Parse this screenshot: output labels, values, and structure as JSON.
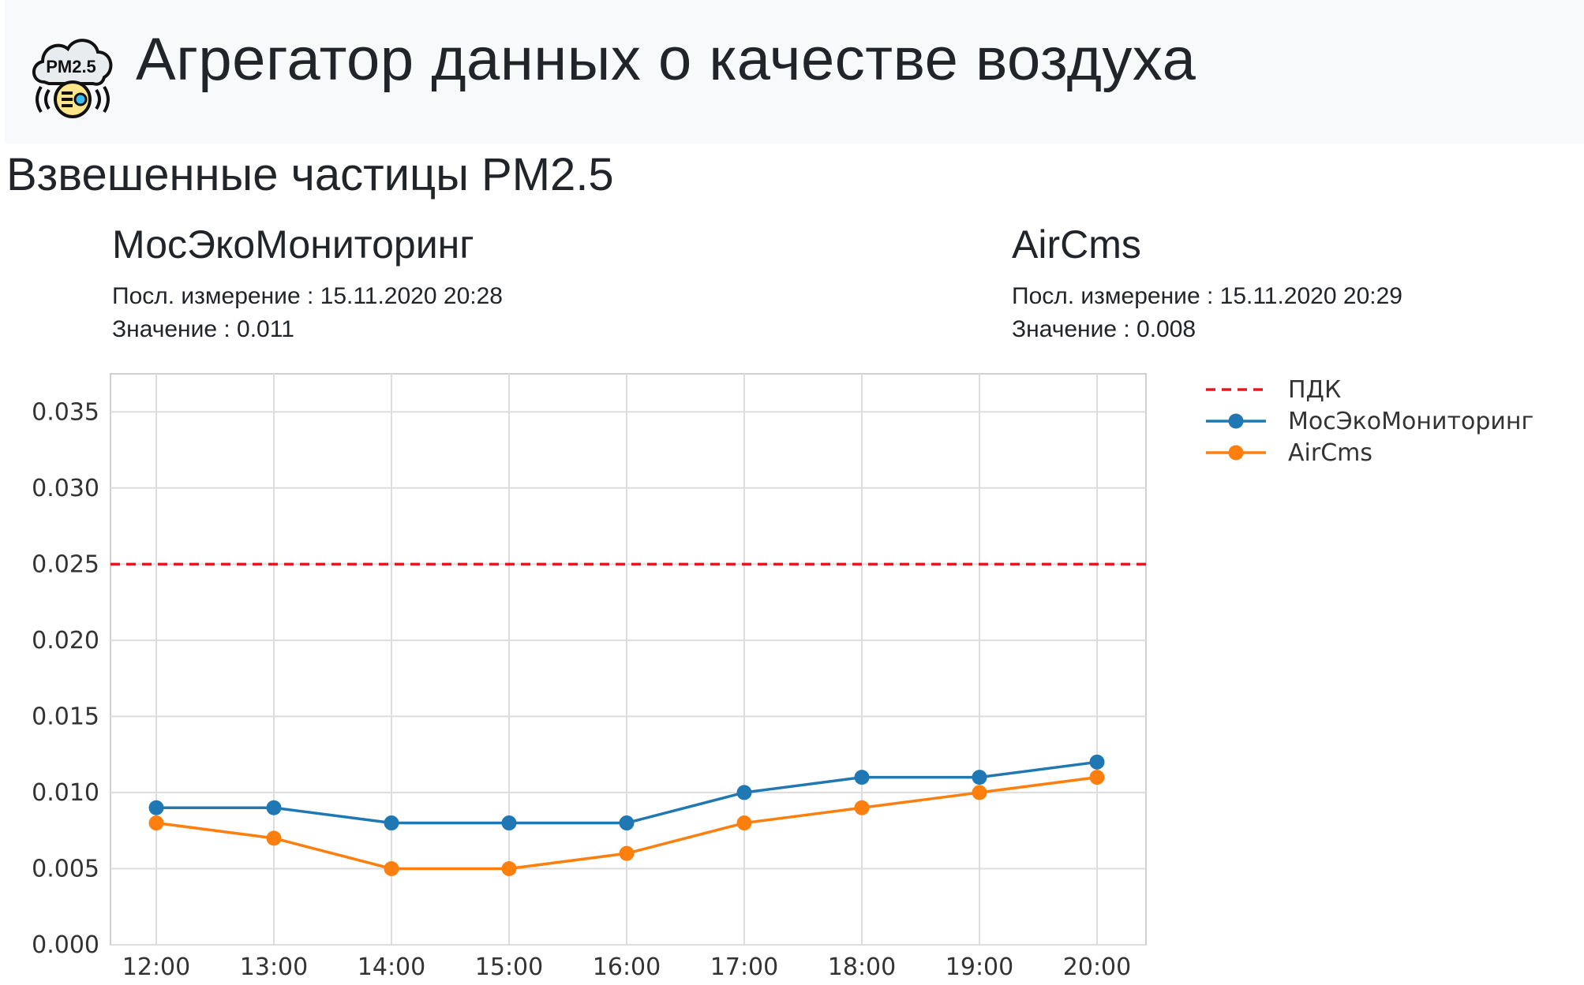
{
  "header": {
    "title": "Агрегатор данных о качестве воздуха",
    "logo_text": "PM2.5",
    "logo_icon": "air-quality-cloud-icon"
  },
  "section": {
    "title": "Взвешенные частицы PM2.5"
  },
  "sources": [
    {
      "name": "МосЭкоМониторинг",
      "last_label": "Посл. измерение : 15.11.2020 20:28",
      "value_label": "Значение : 0.011"
    },
    {
      "name": "AirCms",
      "last_label": "Посл. измерение : 15.11.2020 20:29",
      "value_label": "Значение : 0.008"
    }
  ],
  "chart_data": {
    "type": "line",
    "title": "",
    "xlabel": "",
    "ylabel": "",
    "categories": [
      "12:00",
      "13:00",
      "14:00",
      "15:00",
      "16:00",
      "17:00",
      "18:00",
      "19:00",
      "20:00"
    ],
    "ylim": [
      0,
      0.0375
    ],
    "yticks": [
      "0.000",
      "0.005",
      "0.010",
      "0.015",
      "0.020",
      "0.025",
      "0.030",
      "0.035"
    ],
    "grid": true,
    "legend_position": "outside-right-top",
    "threshold": {
      "name": "ПДК",
      "value": 0.025,
      "color": "#e31a1c",
      "style": "dashed"
    },
    "series": [
      {
        "name": "МосЭкоМониторинг",
        "color": "#1f77b4",
        "values": [
          0.009,
          0.009,
          0.008,
          0.008,
          0.008,
          0.01,
          0.011,
          0.011,
          0.012
        ]
      },
      {
        "name": "AirCms",
        "color": "#ff7f0e",
        "values": [
          0.008,
          0.007,
          0.005,
          0.005,
          0.006,
          0.008,
          0.009,
          0.01,
          0.011
        ]
      }
    ]
  }
}
